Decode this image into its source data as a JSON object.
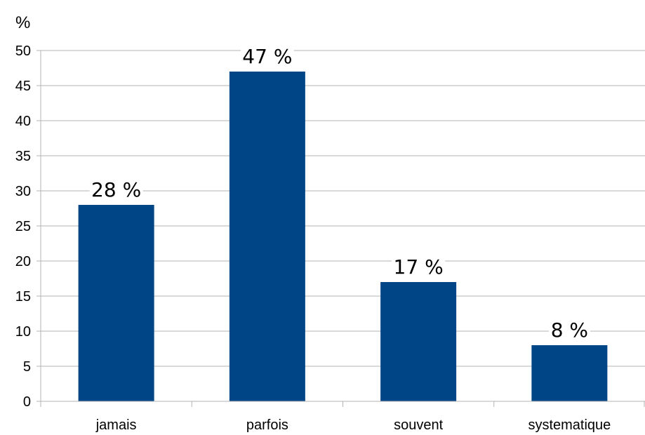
{
  "chart_data": {
    "type": "bar",
    "unit_label": "%",
    "categories": [
      "jamais",
      "parfois",
      "souvent",
      "systematique"
    ],
    "values": [
      28,
      47,
      17,
      8
    ],
    "data_labels": [
      "28 %",
      "47 %",
      "17 %",
      "8 %"
    ],
    "ylim": [
      0,
      50
    ],
    "yticks": [
      0,
      5,
      10,
      15,
      20,
      25,
      30,
      35,
      40,
      45,
      50
    ],
    "grid": true,
    "bar_color": "#004586",
    "grid_color": "#b3b3b3",
    "legend": "none"
  }
}
